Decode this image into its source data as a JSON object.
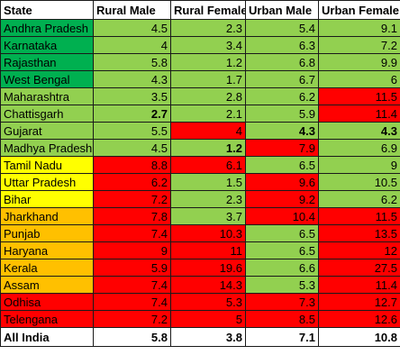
{
  "colors": {
    "dark_green": "#00b050",
    "light_green": "#92d050",
    "red": "#ff0000",
    "yellow": "#ffff00",
    "orange": "#ffc000",
    "white": "#ffffff"
  },
  "headers": [
    "State",
    "Rural Male",
    "Rural Female",
    "Urban Male",
    "Urban Female"
  ],
  "rows": [
    {
      "state": "Andhra Pradesh",
      "state_color": "dark_green",
      "cells": [
        {
          "v": "4.5",
          "c": "light_green"
        },
        {
          "v": "2.3",
          "c": "light_green"
        },
        {
          "v": "5.4",
          "c": "light_green"
        },
        {
          "v": "9.1",
          "c": "light_green"
        }
      ]
    },
    {
      "state": "Karnataka",
      "state_color": "dark_green",
      "cells": [
        {
          "v": "4",
          "c": "light_green"
        },
        {
          "v": "3.4",
          "c": "light_green"
        },
        {
          "v": "6.3",
          "c": "light_green"
        },
        {
          "v": "7.2",
          "c": "light_green"
        }
      ]
    },
    {
      "state": "Rajasthan",
      "state_color": "dark_green",
      "cells": [
        {
          "v": "5.8",
          "c": "light_green"
        },
        {
          "v": "1.2",
          "c": "light_green"
        },
        {
          "v": "6.8",
          "c": "light_green"
        },
        {
          "v": "9.9",
          "c": "light_green"
        }
      ]
    },
    {
      "state": "West Bengal",
      "state_color": "dark_green",
      "cells": [
        {
          "v": "4.3",
          "c": "light_green"
        },
        {
          "v": "1.7",
          "c": "light_green"
        },
        {
          "v": "6.7",
          "c": "light_green"
        },
        {
          "v": "6",
          "c": "light_green"
        }
      ]
    },
    {
      "state": "Maharashtra",
      "state_color": "light_green",
      "cells": [
        {
          "v": "3.5",
          "c": "light_green"
        },
        {
          "v": "2.8",
          "c": "light_green"
        },
        {
          "v": "6.2",
          "c": "light_green"
        },
        {
          "v": "11.5",
          "c": "red"
        }
      ]
    },
    {
      "state": "Chattisgarh",
      "state_color": "light_green",
      "cells": [
        {
          "v": "2.7",
          "c": "light_green",
          "b": true
        },
        {
          "v": "2.1",
          "c": "light_green"
        },
        {
          "v": "5.9",
          "c": "light_green"
        },
        {
          "v": "11.4",
          "c": "red"
        }
      ]
    },
    {
      "state": "Gujarat",
      "state_color": "light_green",
      "cells": [
        {
          "v": "5.5",
          "c": "light_green"
        },
        {
          "v": "4",
          "c": "red"
        },
        {
          "v": "4.3",
          "c": "light_green",
          "b": true
        },
        {
          "v": "4.3",
          "c": "light_green",
          "b": true
        }
      ]
    },
    {
      "state": "Madhya Pradesh",
      "state_color": "light_green",
      "cells": [
        {
          "v": "4.5",
          "c": "light_green"
        },
        {
          "v": "1.2",
          "c": "light_green",
          "b": true
        },
        {
          "v": "7.9",
          "c": "red"
        },
        {
          "v": "6.9",
          "c": "light_green"
        }
      ]
    },
    {
      "state": "Tamil Nadu",
      "state_color": "yellow",
      "cells": [
        {
          "v": "8.8",
          "c": "red"
        },
        {
          "v": "6.1",
          "c": "red"
        },
        {
          "v": "6.5",
          "c": "light_green"
        },
        {
          "v": "9",
          "c": "light_green"
        }
      ]
    },
    {
      "state": "Uttar Pradesh",
      "state_color": "yellow",
      "cells": [
        {
          "v": "6.2",
          "c": "red"
        },
        {
          "v": "1.5",
          "c": "light_green"
        },
        {
          "v": "9.6",
          "c": "red"
        },
        {
          "v": "10.5",
          "c": "light_green"
        }
      ]
    },
    {
      "state": "Bihar",
      "state_color": "yellow",
      "cells": [
        {
          "v": "7.2",
          "c": "red"
        },
        {
          "v": "2.3",
          "c": "light_green"
        },
        {
          "v": "9.2",
          "c": "red"
        },
        {
          "v": "6.2",
          "c": "light_green"
        }
      ]
    },
    {
      "state": "Jharkhand",
      "state_color": "orange",
      "cells": [
        {
          "v": "7.8",
          "c": "red"
        },
        {
          "v": "3.7",
          "c": "light_green"
        },
        {
          "v": "10.4",
          "c": "red"
        },
        {
          "v": "11.5",
          "c": "red"
        }
      ]
    },
    {
      "state": "Punjab",
      "state_color": "orange",
      "cells": [
        {
          "v": "7.4",
          "c": "red"
        },
        {
          "v": "10.3",
          "c": "red"
        },
        {
          "v": "6.5",
          "c": "light_green"
        },
        {
          "v": "13.5",
          "c": "red"
        }
      ]
    },
    {
      "state": "Haryana",
      "state_color": "orange",
      "cells": [
        {
          "v": "9",
          "c": "red"
        },
        {
          "v": "11",
          "c": "red"
        },
        {
          "v": "6.5",
          "c": "light_green"
        },
        {
          "v": "12",
          "c": "red"
        }
      ]
    },
    {
      "state": "Kerala",
      "state_color": "orange",
      "cells": [
        {
          "v": "5.9",
          "c": "red"
        },
        {
          "v": "19.6",
          "c": "red"
        },
        {
          "v": "6.6",
          "c": "light_green"
        },
        {
          "v": "27.5",
          "c": "red"
        }
      ]
    },
    {
      "state": "Assam",
      "state_color": "orange",
      "cells": [
        {
          "v": "7.4",
          "c": "red"
        },
        {
          "v": "14.3",
          "c": "red"
        },
        {
          "v": "5.3",
          "c": "light_green"
        },
        {
          "v": "11.4",
          "c": "red"
        }
      ]
    },
    {
      "state": "Odhisa",
      "state_color": "red",
      "cells": [
        {
          "v": "7.4",
          "c": "red"
        },
        {
          "v": "5.3",
          "c": "red"
        },
        {
          "v": "7.3",
          "c": "red"
        },
        {
          "v": "12.7",
          "c": "red"
        }
      ]
    },
    {
      "state": "Telengana",
      "state_color": "red",
      "cells": [
        {
          "v": "7.2",
          "c": "red"
        },
        {
          "v": "5",
          "c": "red"
        },
        {
          "v": "8.5",
          "c": "red"
        },
        {
          "v": "12.6",
          "c": "red"
        }
      ]
    }
  ],
  "total": {
    "state": "All India",
    "values": [
      "5.8",
      "3.8",
      "7.1",
      "10.8"
    ]
  }
}
